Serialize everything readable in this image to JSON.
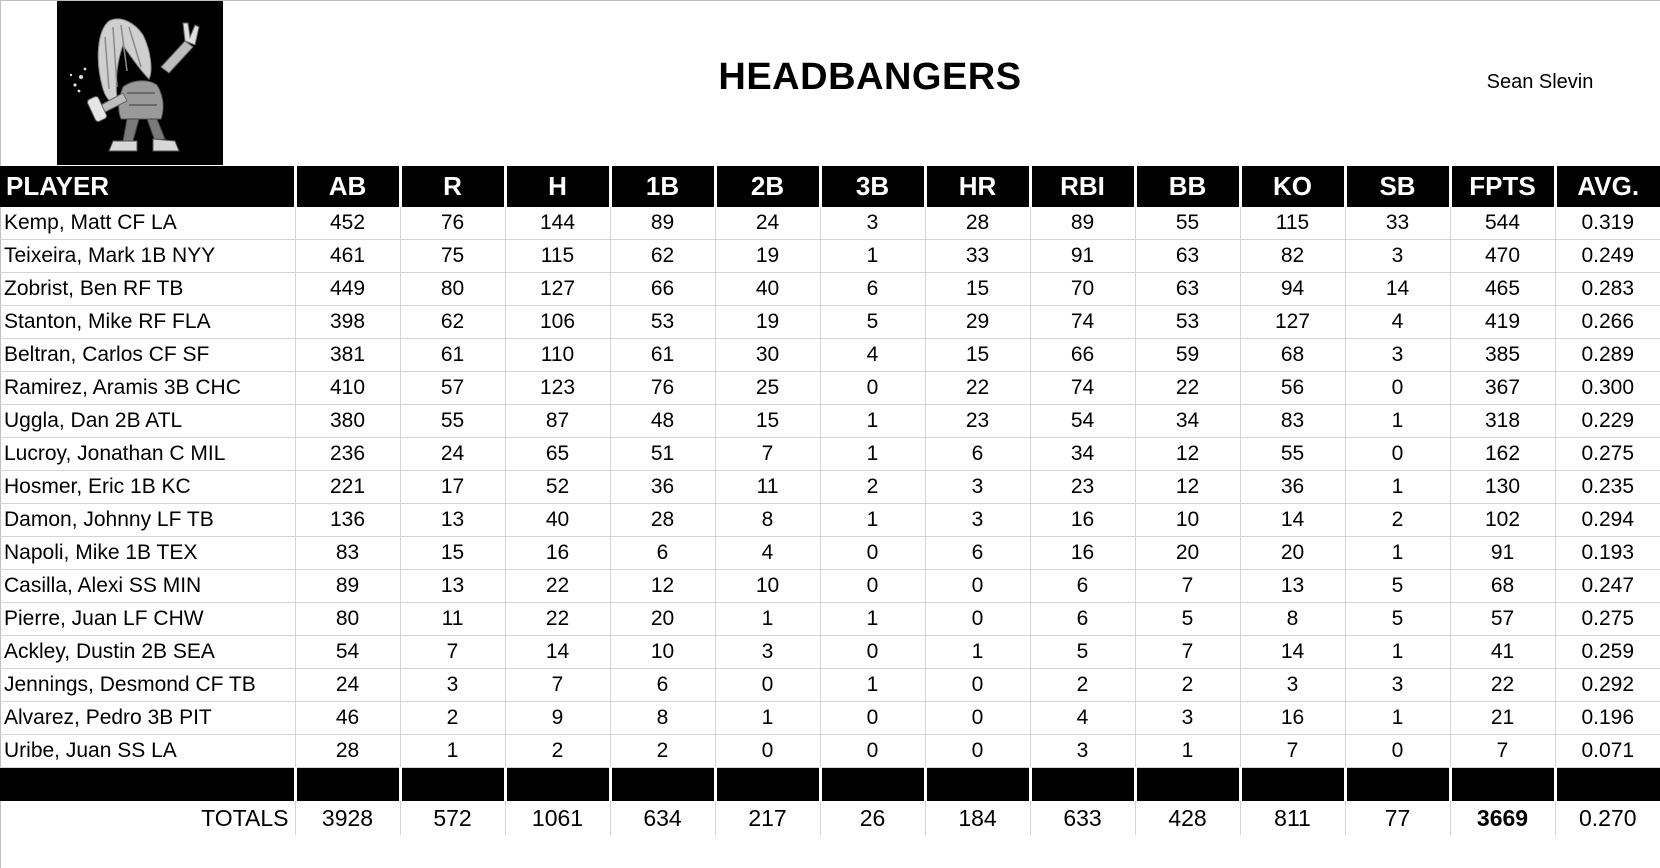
{
  "header": {
    "team_name": "HEADBANGERS",
    "owner": "Sean Slevin",
    "logo_icon": "headbanger-mascot-icon"
  },
  "columns": [
    "PLAYER",
    "AB",
    "R",
    "H",
    "1B",
    "2B",
    "3B",
    "HR",
    "RBI",
    "BB",
    "KO",
    "SB",
    "FPTS",
    "AVG."
  ],
  "rows": [
    [
      "Kemp, Matt CF LA",
      "452",
      "76",
      "144",
      "89",
      "24",
      "3",
      "28",
      "89",
      "55",
      "115",
      "33",
      "544",
      "0.319"
    ],
    [
      "Teixeira, Mark 1B NYY",
      "461",
      "75",
      "115",
      "62",
      "19",
      "1",
      "33",
      "91",
      "63",
      "82",
      "3",
      "470",
      "0.249"
    ],
    [
      "Zobrist, Ben RF TB",
      "449",
      "80",
      "127",
      "66",
      "40",
      "6",
      "15",
      "70",
      "63",
      "94",
      "14",
      "465",
      "0.283"
    ],
    [
      "Stanton, Mike RF FLA",
      "398",
      "62",
      "106",
      "53",
      "19",
      "5",
      "29",
      "74",
      "53",
      "127",
      "4",
      "419",
      "0.266"
    ],
    [
      "Beltran, Carlos CF SF",
      "381",
      "61",
      "110",
      "61",
      "30",
      "4",
      "15",
      "66",
      "59",
      "68",
      "3",
      "385",
      "0.289"
    ],
    [
      "Ramirez, Aramis 3B CHC",
      "410",
      "57",
      "123",
      "76",
      "25",
      "0",
      "22",
      "74",
      "22",
      "56",
      "0",
      "367",
      "0.300"
    ],
    [
      "Uggla, Dan 2B ATL",
      "380",
      "55",
      "87",
      "48",
      "15",
      "1",
      "23",
      "54",
      "34",
      "83",
      "1",
      "318",
      "0.229"
    ],
    [
      "Lucroy, Jonathan C MIL",
      "236",
      "24",
      "65",
      "51",
      "7",
      "1",
      "6",
      "34",
      "12",
      "55",
      "0",
      "162",
      "0.275"
    ],
    [
      "Hosmer, Eric 1B KC",
      "221",
      "17",
      "52",
      "36",
      "11",
      "2",
      "3",
      "23",
      "12",
      "36",
      "1",
      "130",
      "0.235"
    ],
    [
      "Damon, Johnny LF TB",
      "136",
      "13",
      "40",
      "28",
      "8",
      "1",
      "3",
      "16",
      "10",
      "14",
      "2",
      "102",
      "0.294"
    ],
    [
      "Napoli, Mike 1B TEX",
      "83",
      "15",
      "16",
      "6",
      "4",
      "0",
      "6",
      "16",
      "20",
      "20",
      "1",
      "91",
      "0.193"
    ],
    [
      "Casilla, Alexi SS MIN",
      "89",
      "13",
      "22",
      "12",
      "10",
      "0",
      "0",
      "6",
      "7",
      "13",
      "5",
      "68",
      "0.247"
    ],
    [
      "Pierre, Juan LF CHW",
      "80",
      "11",
      "22",
      "20",
      "1",
      "1",
      "0",
      "6",
      "5",
      "8",
      "5",
      "57",
      "0.275"
    ],
    [
      "Ackley, Dustin 2B SEA",
      "54",
      "7",
      "14",
      "10",
      "3",
      "0",
      "1",
      "5",
      "7",
      "14",
      "1",
      "41",
      "0.259"
    ],
    [
      "Jennings, Desmond CF TB",
      "24",
      "3",
      "7",
      "6",
      "0",
      "1",
      "0",
      "2",
      "2",
      "3",
      "3",
      "22",
      "0.292"
    ],
    [
      "Alvarez, Pedro 3B PIT",
      "46",
      "2",
      "9",
      "8",
      "1",
      "0",
      "0",
      "4",
      "3",
      "16",
      "1",
      "21",
      "0.196"
    ],
    [
      "Uribe, Juan SS LA",
      "28",
      "1",
      "2",
      "2",
      "0",
      "0",
      "0",
      "3",
      "1",
      "7",
      "0",
      "7",
      "0.071"
    ]
  ],
  "totals": {
    "label": "TOTALS",
    "values": [
      "3928",
      "572",
      "1061",
      "634",
      "217",
      "26",
      "184",
      "633",
      "428",
      "811",
      "77",
      "3669",
      "0.270"
    ]
  }
}
